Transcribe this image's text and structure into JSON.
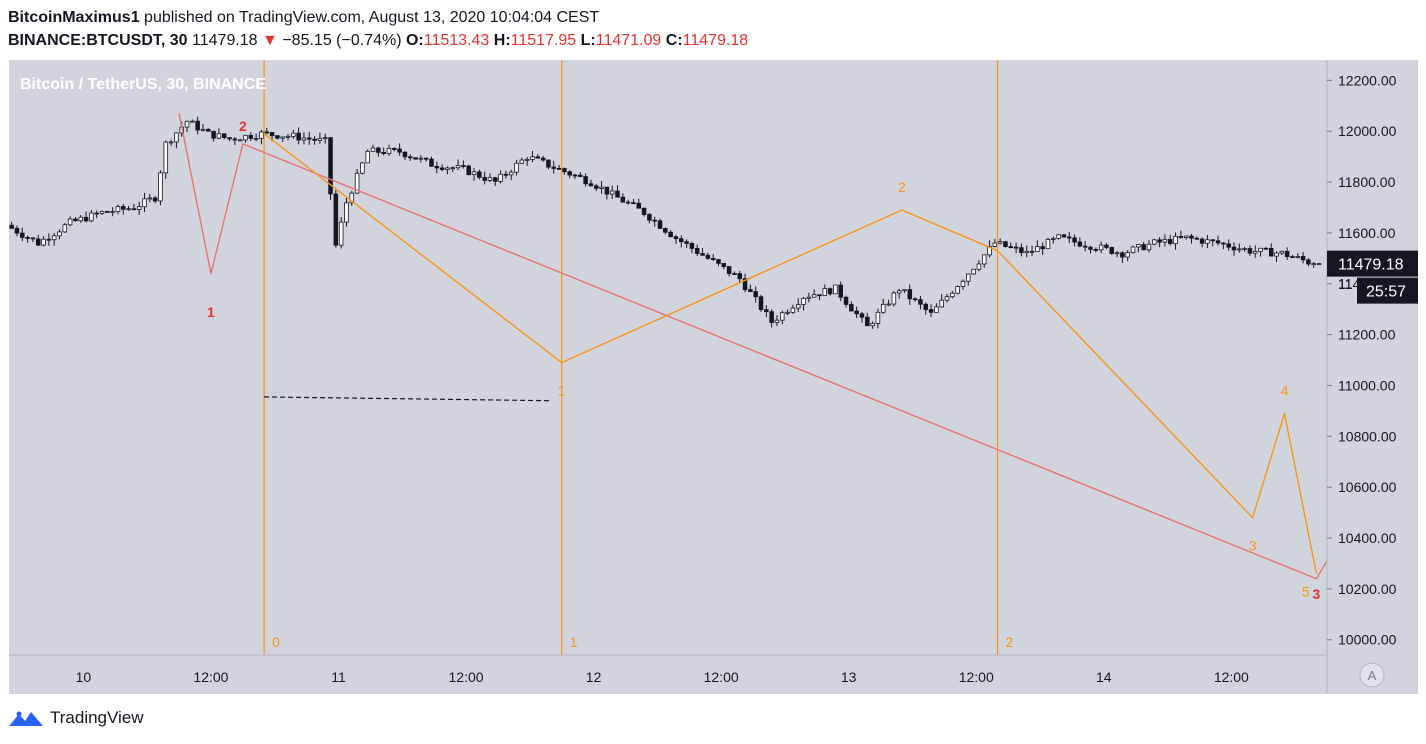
{
  "header": {
    "author": "BitcoinMaximus1",
    "published_text": "published on TradingView.com, August 13, 2020 10:04:04 CEST",
    "symbol": "BINANCE:BTCUSDT, 30",
    "last": "11479.18",
    "change_arrow": "▼",
    "change": "−85.15 (−0.74%)",
    "open_label": "O:",
    "open": "11513.43",
    "high_label": "H:",
    "high": "11517.95",
    "low_label": "L:",
    "low": "11471.09",
    "close_label": "C:",
    "close": "11479.18"
  },
  "footer": {
    "brand": "TradingView"
  },
  "colors": {
    "background": "#d1d4dc",
    "orange": "#f7931a",
    "red_line": "#e57373",
    "red_label": "#e5332f",
    "candle_up": "#ffffff",
    "candle_down": "#131722",
    "price_tag_bg": "#131722"
  },
  "chart_data": {
    "type": "candlestick",
    "title": "Bitcoin / TetherUS, 30, BINANCE",
    "ylim": [
      9940,
      12280
    ],
    "xlim": [
      "2020-08-09 17:00",
      "2020-08-14 21:00"
    ],
    "y_ticks": [
      "12200.00",
      "12000.00",
      "11800.00",
      "11600.00",
      "11400.00",
      "11200.00",
      "11000.00",
      "10800.00",
      "10600.00",
      "10400.00",
      "10200.00",
      "10000.00"
    ],
    "x_ticks": [
      {
        "t": "2020-08-10 00:00",
        "label": "10"
      },
      {
        "t": "2020-08-10 12:00",
        "label": "12:00"
      },
      {
        "t": "2020-08-11 00:00",
        "label": "11"
      },
      {
        "t": "2020-08-11 12:00",
        "label": "12:00"
      },
      {
        "t": "2020-08-12 00:00",
        "label": "12"
      },
      {
        "t": "2020-08-12 12:00",
        "label": "12:00"
      },
      {
        "t": "2020-08-13 00:00",
        "label": "13"
      },
      {
        "t": "2020-08-13 12:00",
        "label": "12:00"
      },
      {
        "t": "2020-08-14 00:00",
        "label": "14"
      },
      {
        "t": "2020-08-14 12:00",
        "label": "12:00"
      }
    ],
    "price_path": [
      [
        "2020-08-09 17:00",
        11630
      ],
      [
        "2020-08-09 20:00",
        11560
      ],
      [
        "2020-08-09 23:00",
        11640
      ],
      [
        "2020-08-10 02:00",
        11680
      ],
      [
        "2020-08-10 05:00",
        11700
      ],
      [
        "2020-08-10 07:00",
        11740
      ],
      [
        "2020-08-10 08:00",
        11950
      ],
      [
        "2020-08-10 10:00",
        12040
      ],
      [
        "2020-08-10 12:00",
        11990
      ],
      [
        "2020-08-10 14:00",
        11970
      ],
      [
        "2020-08-10 17:00",
        11990
      ],
      [
        "2020-08-10 20:00",
        11980
      ],
      [
        "2020-08-10 23:00",
        11960
      ],
      [
        "2020-08-11 00:00",
        11550
      ],
      [
        "2020-08-11 01:00",
        11720
      ],
      [
        "2020-08-11 03:00",
        11920
      ],
      [
        "2020-08-11 06:00",
        11920
      ],
      [
        "2020-08-11 09:00",
        11870
      ],
      [
        "2020-08-11 12:00",
        11850
      ],
      [
        "2020-08-11 15:00",
        11800
      ],
      [
        "2020-08-11 18:00",
        11900
      ],
      [
        "2020-08-11 21:00",
        11850
      ],
      [
        "2020-08-12 00:00",
        11800
      ],
      [
        "2020-08-12 02:00",
        11750
      ],
      [
        "2020-08-12 05:00",
        11680
      ],
      [
        "2020-08-12 08:00",
        11580
      ],
      [
        "2020-08-12 11:00",
        11500
      ],
      [
        "2020-08-12 14:00",
        11420
      ],
      [
        "2020-08-12 17:00",
        11250
      ],
      [
        "2020-08-12 20:00",
        11350
      ],
      [
        "2020-08-12 23:00",
        11380
      ],
      [
        "2020-08-13 02:00",
        11230
      ],
      [
        "2020-08-13 05:00",
        11380
      ],
      [
        "2020-08-13 08:00",
        11280
      ],
      [
        "2020-08-13 11:00",
        11420
      ],
      [
        "2020-08-13 14:00",
        11560
      ],
      [
        "2020-08-13 17:00",
        11520
      ],
      [
        "2020-08-13 20:00",
        11580
      ],
      [
        "2020-08-13 23:00",
        11550
      ],
      [
        "2020-08-14 02:00",
        11520
      ],
      [
        "2020-08-14 05:00",
        11560
      ],
      [
        "2020-08-14 08:00",
        11580
      ],
      [
        "2020-08-14 11:00",
        11560
      ],
      [
        "2020-08-14 14:00",
        11530
      ],
      [
        "2020-08-14 17:00",
        11520
      ],
      [
        "2020-08-14 20:00",
        11479
      ]
    ],
    "red_wave": {
      "points": [
        [
          "2020-08-10 09:00",
          12070
        ],
        [
          "2020-08-10 12:00",
          11440
        ],
        [
          "2020-08-10 15:00",
          11950
        ],
        [
          "2020-08-14 20:00",
          10240
        ],
        [
          "2020-08-14 21:00",
          10310
        ]
      ],
      "labels": [
        [
          "2020-08-10 12:00",
          11270,
          "1"
        ],
        [
          "2020-08-10 15:00",
          12000,
          "2"
        ],
        [
          "2020-08-14 20:00",
          10160,
          "3"
        ]
      ]
    },
    "orange_wave": {
      "points": [
        [
          "2020-08-10 17:00",
          11990
        ],
        [
          "2020-08-11 21:00",
          11090
        ],
        [
          "2020-08-13 05:00",
          11690
        ],
        [
          "2020-08-13 14:00",
          11530
        ],
        [
          "2020-08-14 14:00",
          10480
        ],
        [
          "2020-08-14 17:00",
          10890
        ],
        [
          "2020-08-14 20:00",
          10260
        ]
      ],
      "labels": [
        [
          "2020-08-11 21:00",
          10960,
          "1"
        ],
        [
          "2020-08-13 05:00",
          11760,
          "2"
        ],
        [
          "2020-08-14 14:00",
          10350,
          "3"
        ],
        [
          "2020-08-14 17:00",
          10960,
          "4"
        ],
        [
          "2020-08-14 19:00",
          10170,
          "5"
        ]
      ]
    },
    "vertical_lines": [
      {
        "t": "2020-08-10 17:00",
        "label": "0"
      },
      {
        "t": "2020-08-11 21:00",
        "label": "1"
      },
      {
        "t": "2020-08-13 14:00",
        "label": "2"
      }
    ],
    "dashed_level": {
      "from": "2020-08-10 17:00",
      "to": "2020-08-11 20:00",
      "y_start": 10955,
      "y_end": 10940
    },
    "price_tag": {
      "value": "11479.18",
      "countdown": "25:57",
      "partial_tick": "11"
    },
    "auto_scale_label": "A"
  }
}
